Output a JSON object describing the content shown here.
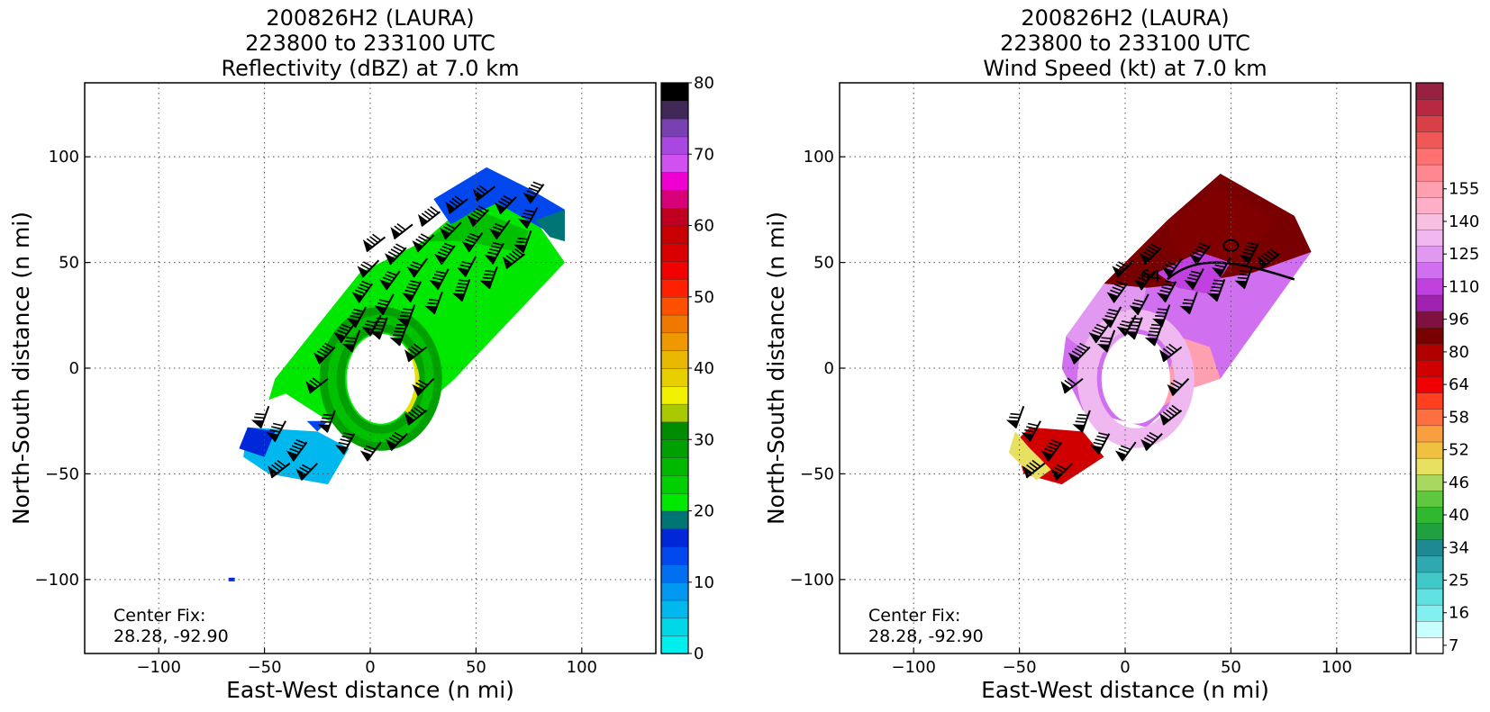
{
  "chart_data": [
    {
      "type": "heatmap",
      "title_lines": [
        "200826H2 (LAURA)",
        "223800 to 233100 UTC",
        "Reflectivity (dBZ) at 7.0 km"
      ],
      "xlabel": "East-West distance (n mi)",
      "ylabel": "North-South distance (n mi)",
      "xlim": [
        -135,
        135
      ],
      "ylim": [
        -135,
        135
      ],
      "xticks": [
        -100,
        -50,
        0,
        50,
        100
      ],
      "yticks": [
        -100,
        -50,
        0,
        50,
        100
      ],
      "xtick_labels": [
        "−100",
        "−50",
        "0",
        "50",
        "100"
      ],
      "ytick_labels": [
        "−100",
        "−50",
        "0",
        "50",
        "100"
      ],
      "grid": true,
      "annotation_lines": [
        "Center Fix:",
        "28.28, -92.90"
      ],
      "colorbar": {
        "min": 0,
        "max": 80,
        "tick_values": [
          0,
          10,
          20,
          30,
          40,
          50,
          60,
          70,
          80
        ],
        "tick_labels": [
          "0",
          "10",
          "20",
          "30",
          "40",
          "50",
          "60",
          "70",
          "80"
        ],
        "colors": [
          "#00eeee",
          "#00d8e8",
          "#00b8ee",
          "#0098f0",
          "#0070f0",
          "#0048ee",
          "#0028d8",
          "#007575",
          "#00e800",
          "#00d000",
          "#00b800",
          "#00a000",
          "#008c00",
          "#a8c800",
          "#f0f000",
          "#e8d000",
          "#e8b800",
          "#f09800",
          "#f07800",
          "#ff5000",
          "#ff2000",
          "#f00000",
          "#d80000",
          "#c80000",
          "#c00020",
          "#d80078",
          "#f000d0",
          "#d050f0",
          "#a848e0",
          "#7840b0",
          "#402858",
          "#000000"
        ]
      },
      "field_palette": [
        "#0048ee",
        "#00b8ee",
        "#00e800",
        "#00c000",
        "#00a000",
        "#e8e000",
        "#007575",
        "#0028d8",
        "#0098f0"
      ]
    },
    {
      "type": "heatmap",
      "title_lines": [
        "200826H2 (LAURA)",
        "223800 to 233100 UTC",
        "Wind Speed (kt) at 7.0 km"
      ],
      "xlabel": "East-West distance (n mi)",
      "ylabel": "North-South distance (n mi)",
      "xlim": [
        -135,
        135
      ],
      "ylim": [
        -135,
        135
      ],
      "xticks": [
        -100,
        -50,
        0,
        50,
        100
      ],
      "yticks": [
        -100,
        -50,
        0,
        50,
        100
      ],
      "xtick_labels": [
        "−100",
        "−50",
        "0",
        "50",
        "100"
      ],
      "ytick_labels": [
        "−100",
        "−50",
        "0",
        "50",
        "100"
      ],
      "grid": true,
      "annotation_lines": [
        "Center Fix:",
        "28.28, -92.90"
      ],
      "contour_label": "64",
      "colorbar": {
        "tick_labels": [
          "7",
          "16",
          "25",
          "34",
          "40",
          "46",
          "52",
          "58",
          "64",
          "80",
          "96",
          "110",
          "125",
          "140",
          "155"
        ],
        "tick_bin_index": [
          0,
          2,
          4,
          6,
          8,
          10,
          12,
          14,
          16,
          18,
          20,
          22,
          24,
          26,
          28
        ],
        "colors": [
          "#ffffff",
          "#c8ffff",
          "#80f0f0",
          "#60e0e0",
          "#40c8c8",
          "#30a8b0",
          "#208890",
          "#20a040",
          "#30b830",
          "#60c840",
          "#a8d860",
          "#e8e060",
          "#f0c040",
          "#f8a040",
          "#ff7040",
          "#ff4020",
          "#f00000",
          "#d00000",
          "#b00000",
          "#780000",
          "#801040",
          "#a020b0",
          "#c040e0",
          "#d070f0",
          "#e098f0",
          "#f0b8f0",
          "#f8c0e0",
          "#ffb0c8",
          "#ffa0b0",
          "#ff8890",
          "#ff7070",
          "#f05858",
          "#d84048",
          "#b82840",
          "#982040"
        ]
      },
      "field_palette": [
        "#d070f0",
        "#e098f0",
        "#f0b8f0",
        "#ffa0b0",
        "#c040e0",
        "#780000",
        "#800000",
        "#a02040",
        "#e8e060",
        "#d00000"
      ]
    }
  ]
}
